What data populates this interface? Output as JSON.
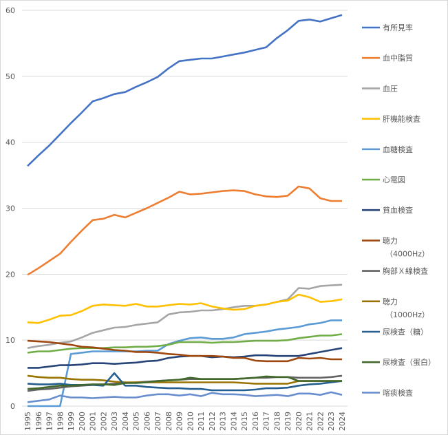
{
  "chart_data": {
    "type": "line",
    "title": "",
    "xlabel": "",
    "ylabel": "",
    "ylim": [
      0,
      60
    ],
    "yticks": [
      0,
      10,
      20,
      30,
      40,
      50,
      60
    ],
    "grid": true,
    "legend_position": "right",
    "x": [
      "1995",
      "1996",
      "1997",
      "1998",
      "1999",
      "2000",
      "2001",
      "2002",
      "2003",
      "2004",
      "2005",
      "2006",
      "2007",
      "2008",
      "2009",
      "2010",
      "2011",
      "2012",
      "2013",
      "2014",
      "2015",
      "2016",
      "2017",
      "2018",
      "2019",
      "2020",
      "2021",
      "2022",
      "2023",
      "2024"
    ],
    "series": [
      {
        "name": "有所見率",
        "color": "#4472C4",
        "values": [
          36.4,
          38.0,
          39.5,
          41.2,
          42.9,
          44.5,
          46.2,
          46.7,
          47.3,
          47.6,
          48.4,
          49.1,
          49.9,
          51.2,
          52.3,
          52.5,
          52.7,
          52.7,
          53.0,
          53.3,
          53.6,
          54.0,
          54.4,
          55.8,
          57.0,
          58.4,
          58.6,
          58.3,
          58.8,
          59.3
        ]
      },
      {
        "name": "血中脂質",
        "color": "#ED7D31",
        "values": [
          19.9,
          20.9,
          22.0,
          23.1,
          24.9,
          26.6,
          28.2,
          28.4,
          29.0,
          28.6,
          29.3,
          30.0,
          30.8,
          31.6,
          32.5,
          32.1,
          32.2,
          32.4,
          32.6,
          32.7,
          32.6,
          32.1,
          31.8,
          31.7,
          31.9,
          33.3,
          33.0,
          31.5,
          31.1,
          31.1
        ]
      },
      {
        "name": "血圧",
        "color": "#A5A5A5",
        "values": [
          8.8,
          9.1,
          9.3,
          9.6,
          9.8,
          10.4,
          11.1,
          11.5,
          11.9,
          12.0,
          12.3,
          12.5,
          12.7,
          13.9,
          14.2,
          14.3,
          14.5,
          14.5,
          14.7,
          15.0,
          15.2,
          15.2,
          15.4,
          15.8,
          16.2,
          17.9,
          17.8,
          18.2,
          18.3,
          18.4
        ]
      },
      {
        "name": "肝機能検査",
        "color": "#FFC000",
        "values": [
          12.7,
          12.6,
          13.1,
          13.7,
          13.8,
          14.4,
          15.2,
          15.4,
          15.3,
          15.2,
          15.5,
          15.1,
          15.1,
          15.3,
          15.5,
          15.4,
          15.6,
          15.1,
          14.8,
          14.6,
          14.7,
          15.2,
          15.4,
          15.8,
          16.0,
          16.9,
          16.5,
          15.8,
          15.9,
          16.2
        ]
      },
      {
        "name": "血糖検査",
        "color": "#5B9BD5",
        "values": [
          0,
          0,
          0,
          0,
          7.9,
          8.1,
          8.3,
          8.3,
          8.3,
          8.3,
          8.3,
          8.4,
          8.4,
          9.4,
          9.9,
          10.3,
          10.4,
          10.2,
          10.2,
          10.4,
          10.9,
          11.1,
          11.3,
          11.6,
          11.8,
          12.0,
          12.4,
          12.6,
          13.0,
          13.0
        ]
      },
      {
        "name": "心電図",
        "color": "#70AD47",
        "values": [
          8.1,
          8.3,
          8.3,
          8.5,
          8.7,
          8.8,
          8.8,
          8.8,
          8.9,
          8.9,
          9.0,
          9.0,
          9.1,
          9.3,
          9.7,
          9.7,
          9.7,
          9.6,
          9.7,
          9.7,
          9.8,
          9.9,
          9.9,
          9.9,
          10.0,
          10.3,
          10.5,
          10.7,
          10.7,
          10.9
        ]
      },
      {
        "name": "貧血検査",
        "color": "#264478",
        "values": [
          5.8,
          5.8,
          6.0,
          6.2,
          6.2,
          6.3,
          6.5,
          6.5,
          6.4,
          6.5,
          6.6,
          6.8,
          6.9,
          7.3,
          7.5,
          7.6,
          7.6,
          7.4,
          7.5,
          7.4,
          7.5,
          7.7,
          7.7,
          7.6,
          7.6,
          7.6,
          7.9,
          8.2,
          8.5,
          8.8
        ]
      },
      {
        "name": "聴力\n（4000Hz）",
        "color": "#9E480E",
        "values": [
          9.9,
          9.8,
          9.7,
          9.5,
          9.3,
          9.0,
          8.9,
          8.7,
          8.5,
          8.4,
          8.2,
          8.2,
          8.1,
          7.9,
          7.8,
          7.6,
          7.6,
          7.6,
          7.5,
          7.3,
          7.3,
          6.9,
          6.8,
          6.8,
          6.8,
          7.3,
          7.2,
          7.3,
          7.1,
          7.1
        ]
      },
      {
        "name": "胸部Ｘ線検査",
        "color": "#636363",
        "values": [
          2.3,
          2.5,
          2.6,
          2.8,
          3.0,
          3.1,
          3.2,
          3.3,
          3.4,
          3.5,
          3.6,
          3.7,
          3.8,
          3.9,
          4.0,
          4.1,
          4.1,
          4.1,
          4.1,
          4.1,
          4.2,
          4.3,
          4.3,
          4.4,
          4.4,
          4.3,
          4.3,
          4.3,
          4.4,
          4.6
        ]
      },
      {
        "name": "聴力\n（1000Hz）",
        "color": "#997300",
        "values": [
          4.6,
          4.4,
          4.3,
          4.3,
          4.1,
          4.0,
          4.0,
          3.9,
          3.7,
          3.6,
          3.6,
          3.6,
          3.6,
          3.6,
          3.6,
          3.6,
          3.6,
          3.6,
          3.6,
          3.6,
          3.5,
          3.4,
          3.4,
          3.4,
          3.4,
          3.8,
          3.8,
          3.8,
          3.8,
          3.8
        ]
      },
      {
        "name": "尿検査（糖）",
        "color": "#255E91",
        "values": [
          3.4,
          3.3,
          3.3,
          3.4,
          3.2,
          3.2,
          3.2,
          3.1,
          5.0,
          3.1,
          3.1,
          2.9,
          2.8,
          2.7,
          2.7,
          2.6,
          2.6,
          2.4,
          2.4,
          2.4,
          2.4,
          2.5,
          2.7,
          2.7,
          2.8,
          3.1,
          3.3,
          3.4,
          3.6,
          3.8
        ]
      },
      {
        "name": "尿検査（蛋白）",
        "color": "#43682B",
        "values": [
          2.6,
          2.7,
          2.9,
          3.1,
          3.1,
          3.2,
          3.3,
          3.3,
          3.2,
          3.5,
          3.5,
          3.6,
          3.8,
          3.9,
          4.0,
          4.3,
          4.1,
          4.1,
          4.1,
          4.1,
          4.2,
          4.3,
          4.5,
          4.4,
          4.4,
          3.8,
          3.8,
          3.8,
          3.8,
          3.8
        ]
      },
      {
        "name": "喀痰検査",
        "color": "#698ED0",
        "values": [
          0.6,
          0.8,
          1.0,
          1.6,
          1.3,
          1.3,
          1.2,
          1.3,
          1.4,
          1.3,
          1.3,
          1.6,
          1.8,
          1.8,
          1.6,
          1.8,
          1.5,
          2.0,
          1.8,
          1.8,
          1.7,
          1.5,
          1.6,
          1.7,
          1.5,
          1.9,
          1.9,
          1.7,
          2.1,
          1.7
        ]
      }
    ]
  }
}
